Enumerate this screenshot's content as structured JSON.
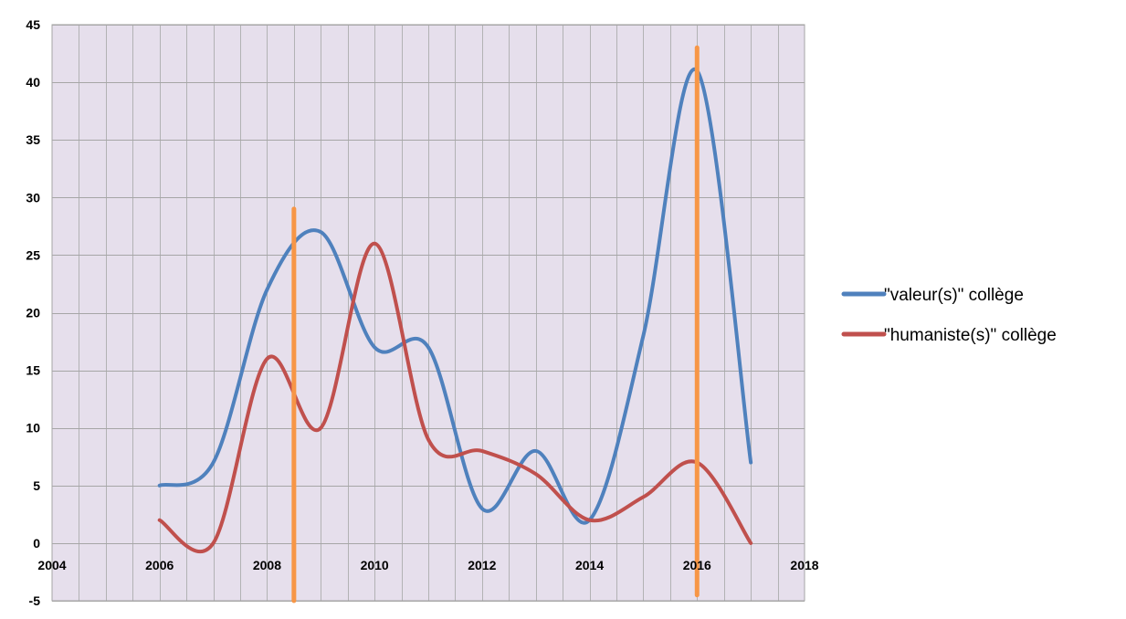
{
  "chart_data": {
    "type": "line",
    "smooth": true,
    "title": "",
    "xlabel": "",
    "ylabel": "",
    "xlim": [
      2004,
      2018
    ],
    "ylim": [
      -5,
      45
    ],
    "x_ticks": [
      2004,
      2006,
      2008,
      2010,
      2012,
      2014,
      2016,
      2018
    ],
    "y_ticks": [
      -5,
      0,
      5,
      10,
      15,
      20,
      25,
      30,
      35,
      40,
      45
    ],
    "x_minor_step": 0.5,
    "grid": true,
    "legend_position": "right",
    "background_color": "#e6dfec",
    "grid_color": "#a6a6a6",
    "series": [
      {
        "name": "\"valeur(s)\" collège",
        "color": "#4f81bd",
        "x": [
          2006,
          2007,
          2008,
          2009,
          2010,
          2011,
          2012,
          2013,
          2014,
          2015,
          2016,
          2017
        ],
        "values": [
          5,
          7,
          22,
          27,
          17,
          17,
          3,
          8,
          2,
          18,
          41,
          7
        ]
      },
      {
        "name": "\"humaniste(s)\" collège",
        "color": "#c0504d",
        "x": [
          2006,
          2007,
          2008,
          2009,
          2010,
          2011,
          2012,
          2013,
          2014,
          2015,
          2016,
          2017
        ],
        "values": [
          2,
          0,
          16,
          10,
          26,
          9,
          8,
          6,
          2,
          4,
          7,
          0
        ]
      }
    ],
    "reference_lines": {
      "color": "#f79646",
      "lines": [
        {
          "x": 2008.5,
          "y_from": -5,
          "y_to": 29
        },
        {
          "x": 2016,
          "y_from": -4.5,
          "y_to": 43
        }
      ]
    }
  }
}
